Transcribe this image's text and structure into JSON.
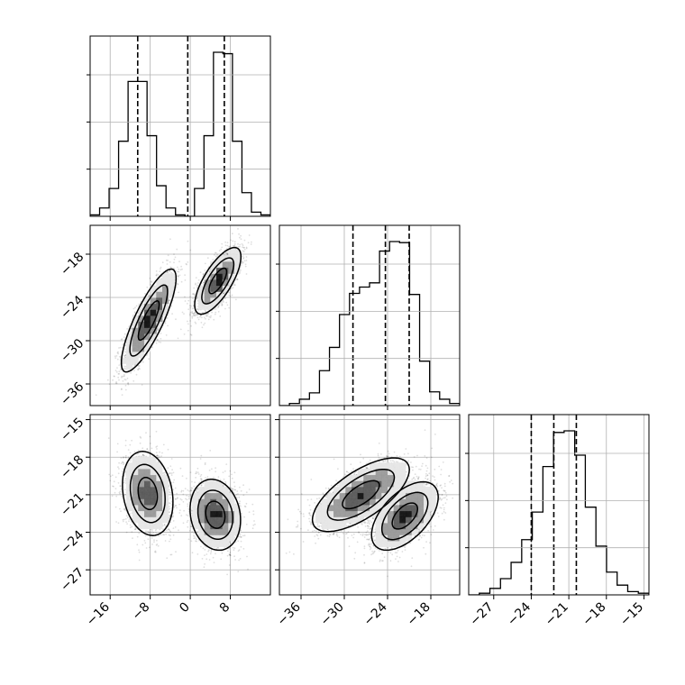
{
  "chart_data": {
    "type": "corner",
    "grid": true,
    "histogram_style": "step",
    "params": [
      {
        "range": [
          -20,
          16
        ],
        "ticks": [
          -16,
          -8,
          0,
          8
        ],
        "tick_labels": [
          "−16",
          "−8",
          "0",
          "8"
        ],
        "quantiles": [
          -10.5,
          -0.5,
          6.8
        ],
        "hist": [
          1,
          6,
          20,
          54,
          97,
          97,
          58,
          22,
          6,
          1,
          0,
          20,
          58,
          118,
          117,
          54,
          17,
          3,
          1
        ]
      },
      {
        "range": [
          -39,
          -14
        ],
        "ticks": [
          -36,
          -30,
          -24,
          -18
        ],
        "tick_labels": [
          "−36",
          "−30",
          "−24",
          "−18"
        ],
        "quantiles": [
          -28.8,
          -24.3,
          -21.0
        ],
        "hist": [
          0,
          2,
          6,
          12,
          33,
          55,
          86,
          106,
          112,
          116,
          146,
          155,
          154,
          105,
          42,
          13,
          6,
          2
        ]
      },
      {
        "range": [
          -29,
          -14.6
        ],
        "ticks": [
          -27,
          -24,
          -21,
          -18,
          -15
        ],
        "tick_labels": [
          "−27",
          "−24",
          "−21",
          "−18",
          "−15"
        ],
        "quantiles": [
          -24.0,
          -22.2,
          -20.4
        ],
        "hist": [
          0,
          1,
          4,
          10,
          20,
          34,
          51,
          79,
          100,
          101,
          86,
          54,
          30,
          14,
          6,
          2,
          1
        ]
      }
    ],
    "pairs": [
      {
        "row": 1,
        "col": 0,
        "modes": [
          {
            "center": [
              -8.3,
              -27.2
            ],
            "sd": [
              2.6,
              3.4
            ],
            "rho": 0.82,
            "n": 1800,
            "weight": 1.0
          },
          {
            "center": [
              5.5,
              -21.7
            ],
            "sd": [
              2.2,
              2.2
            ],
            "rho": 0.72,
            "n": 1900,
            "weight": 1.2
          }
        ]
      },
      {
        "row": 2,
        "col": 0,
        "modes": [
          {
            "center": [
              -8.5,
              -20.9
            ],
            "sd": [
              2.4,
              1.6
            ],
            "rho": -0.2,
            "n": 1800,
            "weight": 1.0
          },
          {
            "center": [
              5.0,
              -22.6
            ],
            "sd": [
              2.4,
              1.35
            ],
            "rho": -0.15,
            "n": 1900,
            "weight": 1.2
          }
        ]
      },
      {
        "row": 2,
        "col": 1,
        "modes": [
          {
            "center": [
              -27.7,
              -21.0
            ],
            "sd": [
              3.2,
              1.4
            ],
            "rho": 0.68,
            "n": 1800,
            "weight": 1.0
          },
          {
            "center": [
              -21.6,
              -22.7
            ],
            "sd": [
              2.2,
              1.3
            ],
            "rho": 0.55,
            "n": 1900,
            "weight": 1.2
          }
        ]
      }
    ]
  }
}
